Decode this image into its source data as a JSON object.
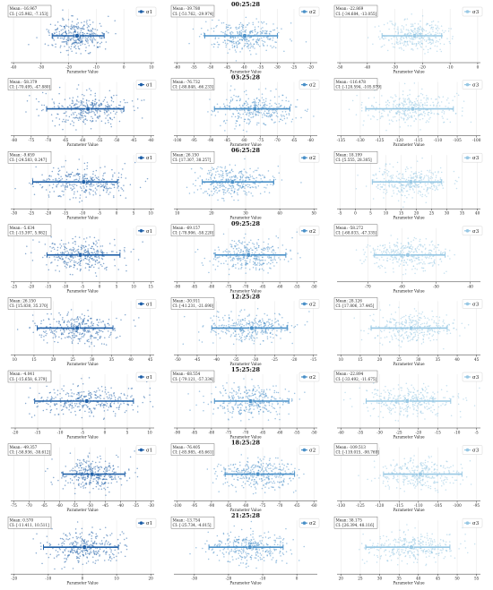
{
  "figure": {
    "time_labels": [
      "00:25:28",
      "03:25:28",
      "06:25:28",
      "09:25:28",
      "12:25:28",
      "15:25:28",
      "18:25:28",
      "21:25:28"
    ],
    "xlabel": "Parameter Value",
    "legend_labels": [
      "σ1",
      "σ2",
      "σ3"
    ],
    "colors": [
      "#2060a8",
      "#4a90c8",
      "#98c8e4"
    ]
  },
  "chart_data": [
    {
      "type": "scatter",
      "row": 0,
      "col": 0,
      "time": "",
      "mean_text": "Mean: -16.967",
      "ci_text": "CI: [-25.982, -7.153]",
      "mean": -16.967,
      "ci": [
        -25.982,
        -7.153
      ],
      "xticks": [
        -40,
        -30,
        -20,
        -10,
        0,
        10
      ],
      "xlim": [
        -41,
        11
      ],
      "legend": "σ1"
    },
    {
      "type": "scatter",
      "row": 0,
      "col": 1,
      "time": "00:25:28",
      "mean_text": "Mean: -39.780",
      "ci_text": "CI: [-51.762, -29.974]",
      "mean": -39.78,
      "ci": [
        -51.762,
        -29.974
      ],
      "xticks": [
        -60,
        -55,
        -50,
        -45,
        -40,
        -35,
        -30,
        -25,
        -20
      ],
      "xlim": [
        -61,
        -18
      ],
      "legend": "σ2"
    },
    {
      "type": "scatter",
      "row": 0,
      "col": 2,
      "time": "",
      "mean_text": "Mean: -22.869",
      "ci_text": "CI: [-34.684, -13.055]",
      "mean": -22.869,
      "ci": [
        -34.684,
        -13.055
      ],
      "xticks": [
        -50,
        -40,
        -30,
        -20,
        -10,
        0
      ],
      "xlim": [
        -51,
        1
      ],
      "legend": "σ3"
    },
    {
      "type": "scatter",
      "row": 1,
      "col": 0,
      "time": "",
      "mean_text": "Mean: -58.379",
      "ci_text": "CI: [-70.495, -47.880]",
      "mean": -58.379,
      "ci": [
        -70.495,
        -47.88
      ],
      "xticks": [
        -80,
        -75,
        -70,
        -65,
        -60,
        -55,
        -50,
        -45,
        -40
      ],
      "xlim": [
        -81,
        -39
      ],
      "legend": "σ1"
    },
    {
      "type": "scatter",
      "row": 1,
      "col": 1,
      "time": "03:25:28",
      "mean_text": "Mean: -76.732",
      "ci_text": "CI: [-88.848, -66.233]",
      "mean": -76.732,
      "ci": [
        -88.848,
        -66.233
      ],
      "xticks": [
        -100,
        -95,
        -90,
        -85,
        -80,
        -75,
        -70,
        -65,
        -60
      ],
      "xlim": [
        -101,
        -58
      ],
      "legend": "σ2"
    },
    {
      "type": "scatter",
      "row": 1,
      "col": 2,
      "time": "",
      "mean_text": "Mean: -116.478",
      "ci_text": "CI: [-128.594, -105.979]",
      "mean": -116.478,
      "ci": [
        -128.594,
        -105.979
      ],
      "xticks": [
        -135,
        -130,
        -125,
        -120,
        -115,
        -110,
        -105,
        -100
      ],
      "xlim": [
        -136,
        -99
      ],
      "legend": "σ3"
    },
    {
      "type": "scatter",
      "row": 2,
      "col": 0,
      "time": "",
      "mean_text": "Mean: -9.659",
      "ci_text": "CI: [-24.583, 0.247]",
      "mean": -9.659,
      "ci": [
        -24.583,
        0.247
      ],
      "xticks": [
        -30,
        -25,
        -20,
        -15,
        -10,
        -5,
        0,
        5,
        10
      ],
      "xlim": [
        -31,
        11
      ],
      "legend": "σ1"
    },
    {
      "type": "scatter",
      "row": 2,
      "col": 1,
      "time": "06:25:28",
      "mean_text": "Mean: 26.150",
      "ci_text": "CI: [17.307, 38.257]",
      "mean": 26.15,
      "ci": [
        17.307,
        38.257
      ],
      "xticks": [
        10,
        20,
        30,
        40,
        50
      ],
      "xlim": [
        9,
        51
      ],
      "legend": "σ2"
    },
    {
      "type": "scatter",
      "row": 2,
      "col": 2,
      "time": "",
      "mean_text": "Mean: 18.199",
      "ci_text": "CI: [5.555, 28.305]",
      "mean": 18.199,
      "ci": [
        5.555,
        28.305
      ],
      "xticks": [
        -5,
        0,
        5,
        10,
        15,
        20,
        25,
        30,
        35,
        40
      ],
      "xlim": [
        -6,
        41
      ],
      "legend": "σ3"
    },
    {
      "type": "scatter",
      "row": 3,
      "col": 0,
      "time": "",
      "mean_text": "Mean: -5.634",
      "ci_text": "CI: [-15.397, 5.982]",
      "mean": -5.634,
      "ci": [
        -15.397,
        5.982
      ],
      "xticks": [
        -25,
        -20,
        -15,
        -10,
        -5,
        0,
        5,
        10,
        15
      ],
      "xlim": [
        -26,
        16
      ],
      "legend": "σ1"
    },
    {
      "type": "scatter",
      "row": 3,
      "col": 1,
      "time": "09:25:28",
      "mean_text": "Mean: -69.157",
      "ci_text": "CI: [-78.906, -58.220]",
      "mean": -69.157,
      "ci": [
        -78.906,
        -58.22
      ],
      "xticks": [
        -90,
        -85,
        -80,
        -75,
        -70,
        -65,
        -60,
        -55,
        -50
      ],
      "xlim": [
        -91,
        -49
      ],
      "legend": "σ2"
    },
    {
      "type": "scatter",
      "row": 3,
      "col": 2,
      "time": "",
      "mean_text": "Mean: -58.272",
      "ci_text": "CI: [-68.033, -47.335]",
      "mean": -58.272,
      "ci": [
        -68.033,
        -47.335
      ],
      "xticks": [
        -70,
        -60,
        -50,
        -40
      ],
      "xlim": [
        -79,
        -37
      ],
      "legend": "σ3"
    },
    {
      "type": "scatter",
      "row": 4,
      "col": 0,
      "time": "",
      "mean_text": "Mean: 26.150",
      "ci_text": "CI: [15.830, 35.370]",
      "mean": 26.15,
      "ci": [
        15.83,
        35.37
      ],
      "xticks": [
        10,
        15,
        20,
        25,
        30,
        35,
        40,
        45
      ],
      "xlim": [
        9,
        46
      ],
      "legend": "σ1"
    },
    {
      "type": "scatter",
      "row": 4,
      "col": 1,
      "time": "12:25:28",
      "mean_text": "Mean: -30.911",
      "ci_text": "CI: [-41.231, -21.690]",
      "mean": -30.911,
      "ci": [
        -41.231,
        -21.69
      ],
      "xticks": [
        -50,
        -45,
        -40,
        -35,
        -30,
        -25,
        -20,
        -15
      ],
      "xlim": [
        -51,
        -14
      ],
      "legend": "σ2"
    },
    {
      "type": "scatter",
      "row": 4,
      "col": 2,
      "time": "",
      "mean_text": "Mean: 28.126",
      "ci_text": "CI: [17.806, 37.445]",
      "mean": 28.126,
      "ci": [
        17.806,
        37.445
      ],
      "xticks": [
        10,
        15,
        20,
        25,
        30,
        35,
        40,
        45
      ],
      "xlim": [
        9,
        46
      ],
      "legend": "σ3"
    },
    {
      "type": "scatter",
      "row": 5,
      "col": 0,
      "time": "",
      "mean_text": "Mean: -4.041",
      "ci_text": "CI: [-15.658, 6.379]",
      "mean": -4.041,
      "ci": [
        -15.658,
        6.379
      ],
      "xticks": [
        -20,
        -15,
        -10,
        -5,
        0,
        5,
        10
      ],
      "xlim": [
        -21,
        11
      ],
      "legend": "σ1"
    },
    {
      "type": "scatter",
      "row": 5,
      "col": 1,
      "time": "15:25:28",
      "mean_text": "Mean: -68.554",
      "ci_text": "CI: [-79.121, -57.334]",
      "mean": -68.554,
      "ci": [
        -79.121,
        -57.334
      ],
      "xticks": [
        -90,
        -85,
        -80,
        -75,
        -70,
        -65,
        -60,
        -55,
        -50
      ],
      "xlim": [
        -91,
        -49
      ],
      "legend": "σ2"
    },
    {
      "type": "scatter",
      "row": 5,
      "col": 2,
      "time": "",
      "mean_text": "Mean: -22.894",
      "ci_text": "CI: [-33.492, -11.675]",
      "mean": -22.894,
      "ci": [
        -33.492,
        -11.675
      ],
      "xticks": [
        -40,
        -35,
        -30,
        -25,
        -20,
        -15,
        -10,
        -5
      ],
      "xlim": [
        -41,
        -4
      ],
      "legend": "σ3"
    },
    {
      "type": "scatter",
      "row": 6,
      "col": 0,
      "time": "",
      "mean_text": "Mean: -49.357",
      "ci_text": "CI: [-58.936, -38.612]",
      "mean": -49.357,
      "ci": [
        -58.936,
        -38.612
      ],
      "xticks": [
        -75,
        -70,
        -65,
        -60,
        -55,
        -50,
        -45,
        -40,
        -35,
        -30
      ],
      "xlim": [
        -76,
        -29
      ],
      "legend": "σ1"
    },
    {
      "type": "scatter",
      "row": 6,
      "col": 1,
      "time": "18:25:28",
      "mean_text": "Mean: -76.405",
      "ci_text": "CI: [-85.985, -65.661]",
      "mean": -76.405,
      "ci": [
        -85.985,
        -65.661
      ],
      "xticks": [
        -100,
        -95,
        -90,
        -85,
        -80,
        -75,
        -70,
        -65,
        -60
      ],
      "xlim": [
        -101,
        -59
      ],
      "legend": "σ2"
    },
    {
      "type": "scatter",
      "row": 6,
      "col": 2,
      "time": "",
      "mean_text": "Mean: -109.513",
      "ci_text": "CI: [-119.015, -98.769]",
      "mean": -109.513,
      "ci": [
        -119.015,
        -98.769
      ],
      "xticks": [
        -130,
        -125,
        -120,
        -115,
        -110,
        -105,
        -100,
        -95
      ],
      "xlim": [
        -131,
        -94
      ],
      "legend": "σ3"
    },
    {
      "type": "scatter",
      "row": 7,
      "col": 0,
      "time": "",
      "mean_text": "Mean: 0.570",
      "ci_text": "CI: [-11.411, 10.511]",
      "mean": 0.57,
      "ci": [
        -11.411,
        10.511
      ],
      "xticks": [
        -20,
        -10,
        0,
        10,
        20
      ],
      "xlim": [
        -21,
        21
      ],
      "legend": "σ1"
    },
    {
      "type": "scatter",
      "row": 7,
      "col": 1,
      "time": "21:25:28",
      "mean_text": "Mean: -13.754",
      "ci_text": "CI: [-25.734, -4.015]",
      "mean": -13.754,
      "ci": [
        -25.734,
        -4.015
      ],
      "xticks": [
        -30,
        -20,
        -10,
        0
      ],
      "xlim": [
        -36,
        6
      ],
      "legend": "σ2"
    },
    {
      "type": "scatter",
      "row": 7,
      "col": 2,
      "time": "",
      "mean_text": "Mean: 38.175",
      "ci_text": "CI: [26.394, 48.116]",
      "mean": 38.175,
      "ci": [
        26.394,
        48.116
      ],
      "xticks": [
        20,
        25,
        30,
        35,
        40,
        45,
        50,
        55
      ],
      "xlim": [
        19,
        56
      ],
      "legend": "σ3"
    }
  ]
}
